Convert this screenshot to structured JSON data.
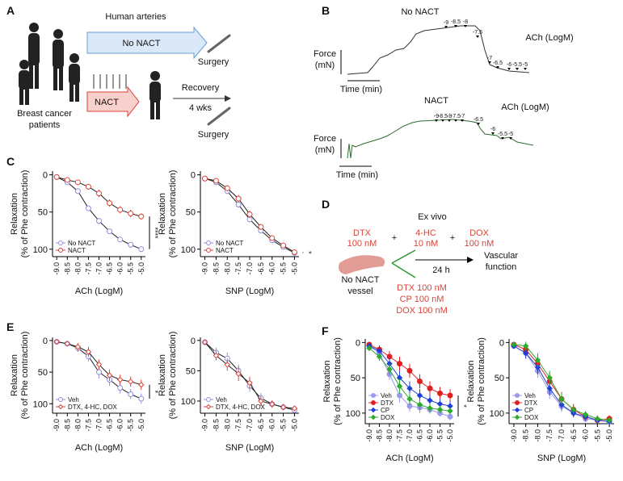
{
  "panels": [
    "A",
    "B",
    "C",
    "D",
    "E",
    "F"
  ],
  "panel_a": {
    "title": "Human arteries",
    "no_nact": "No NACT",
    "surgery_1": "Surgery",
    "nact": "NACT",
    "recovery": "Recovery",
    "duration": "4 wks",
    "surgery_2": "Surgery",
    "patients": [
      "Breast cancer",
      "patients"
    ]
  },
  "panel_b": {
    "traces": [
      {
        "title": "No NACT",
        "agonist": "ACh (LogM)",
        "doses": [
          "-9",
          "-8.5",
          "-8",
          "-7.5",
          "-7",
          "-6.5",
          "-6",
          "-5.5",
          "-5"
        ],
        "y_label": [
          "Force",
          "(mN)"
        ],
        "x_label": "Time (min)"
      },
      {
        "title": "NACT",
        "agonist": "ACh (LogM)",
        "doses": [
          "-9",
          "-8.5",
          "-8",
          "-7.5",
          "-7",
          "-6.5",
          "-6",
          "-5.5",
          "-5"
        ],
        "y_label": [
          "Force",
          "(mN)"
        ],
        "x_label": "Time (min)"
      }
    ]
  },
  "panel_d": {
    "title": "Ex vivo",
    "drugs": [
      {
        "name": "DTX",
        "dose": "100 nM"
      },
      {
        "name": "4-HC",
        "dose": "10 nM"
      },
      {
        "name": "DOX",
        "dose": "100 nM"
      }
    ],
    "plus": "+",
    "time": "24 h",
    "outcome": [
      "Vascular",
      "function"
    ],
    "vessel": [
      "No NACT",
      "vessel"
    ],
    "alt_drugs": [
      "DTX 100 nM",
      "CP 100 nM",
      "DOX 100 nM"
    ]
  },
  "chart_data": [
    {
      "type": "line",
      "x": [
        -9,
        -8.5,
        -8,
        -7.5,
        -7,
        -6.5,
        -6,
        -5.5,
        -5
      ],
      "xlim": [
        -9.2,
        -4.8
      ],
      "xticks": [
        {
          "value": -9,
          "label": "-9.0"
        },
        {
          "value": -8.5,
          "label": "-8.5"
        },
        {
          "value": -8,
          "label": "-8.0"
        },
        {
          "value": -7.5,
          "label": "-7.5"
        },
        {
          "value": -7,
          "label": "-7.0"
        },
        {
          "value": -6.5,
          "label": "-6.5"
        },
        {
          "value": -6,
          "label": "-6.0"
        },
        {
          "value": -5.5,
          "label": "-5.5"
        },
        {
          "value": -5,
          "label": "-5.0"
        }
      ],
      "ylim": [
        -5,
        110
      ],
      "yticks": [
        0,
        50,
        100
      ],
      "y_inverted": true,
      "xlabel": "ACh (LogM)",
      "ylabel": [
        "Relaxation",
        "(% of Phe contraction)"
      ],
      "legend": "lower left",
      "marker_fill": false,
      "annotation": "****",
      "series": [
        {
          "name": "No NACT",
          "color": "#8f8fe0",
          "marker": "circle",
          "values": [
            3,
            10,
            22,
            45,
            62,
            76,
            87,
            94,
            100
          ],
          "errors": [
            2,
            2,
            3,
            3,
            4,
            3,
            3,
            2,
            2
          ]
        },
        {
          "name": "NACT",
          "color": "#d9453a",
          "marker": "circle",
          "values": [
            3,
            7,
            10,
            16,
            25,
            38,
            47,
            52,
            56
          ],
          "errors": [
            2,
            2,
            3,
            4,
            5,
            5,
            5,
            5,
            4
          ]
        }
      ]
    },
    {
      "type": "line",
      "x": [
        -9,
        -8.5,
        -8,
        -7.5,
        -7,
        -6.5,
        -6,
        -5.5,
        -5
      ],
      "xlim": [
        -9.2,
        -4.8
      ],
      "xticks": [
        {
          "value": -9,
          "label": "-9.0"
        },
        {
          "value": -8.5,
          "label": "-8.5"
        },
        {
          "value": -8,
          "label": "-8.0"
        },
        {
          "value": -7.5,
          "label": "-7.5"
        },
        {
          "value": -7,
          "label": "-7.0"
        },
        {
          "value": -6.5,
          "label": "-6.5"
        },
        {
          "value": -6,
          "label": "-6.0"
        },
        {
          "value": -5.5,
          "label": "-5.5"
        },
        {
          "value": -5,
          "label": "-5.0"
        }
      ],
      "ylim": [
        -5,
        110
      ],
      "yticks": [
        0,
        50,
        100
      ],
      "y_inverted": true,
      "xlabel": "SNP (LogM)",
      "ylabel": [
        "Relaxation",
        "(% of Phe contraction)"
      ],
      "legend": "lower left",
      "marker_fill": false,
      "annotation": "*",
      "series": [
        {
          "name": "No NACT",
          "color": "#8f8fe0",
          "marker": "circle",
          "values": [
            5,
            10,
            22,
            40,
            60,
            75,
            88,
            97,
            105
          ],
          "errors": [
            2,
            3,
            3,
            4,
            4,
            3,
            3,
            2,
            2
          ]
        },
        {
          "name": "NACT",
          "color": "#d9453a",
          "marker": "circle",
          "values": [
            5,
            8,
            18,
            32,
            53,
            70,
            85,
            95,
            104
          ],
          "errors": [
            2,
            3,
            4,
            5,
            5,
            4,
            3,
            2,
            2
          ]
        }
      ]
    },
    {
      "type": "line",
      "x": [
        -9,
        -8.5,
        -8,
        -7.5,
        -7,
        -6.5,
        -6,
        -5.5,
        -5
      ],
      "xlim": [
        -9.2,
        -4.8
      ],
      "xticks": [
        {
          "value": -9,
          "label": "-9.0"
        },
        {
          "value": -8.5,
          "label": "-8.5"
        },
        {
          "value": -8,
          "label": "-8.0"
        },
        {
          "value": -7.5,
          "label": "-7.5"
        },
        {
          "value": -7,
          "label": "-7.0"
        },
        {
          "value": -6.5,
          "label": "-6.5"
        },
        {
          "value": -6,
          "label": "-6.0"
        },
        {
          "value": -5.5,
          "label": "-5.5"
        },
        {
          "value": -5,
          "label": "-5.0"
        }
      ],
      "ylim": [
        -5,
        115
      ],
      "yticks": [
        0,
        50,
        100
      ],
      "y_inverted": true,
      "xlabel": "ACh (LogM)",
      "ylabel": [
        "Relaxation",
        "(% of Phe contraction)"
      ],
      "legend": "lower left",
      "marker_fill": false,
      "annotation": "*",
      "series": [
        {
          "name": "Veh",
          "color": "#8f8fe0",
          "marker": "circle",
          "values": [
            2,
            5,
            12,
            25,
            50,
            62,
            75,
            85,
            92
          ],
          "errors": [
            2,
            4,
            6,
            8,
            10,
            10,
            9,
            8,
            8
          ]
        },
        {
          "name": "DTX, 4-HC, DOX",
          "color": "#d9453a",
          "marker": "diamond",
          "values": [
            2,
            5,
            10,
            18,
            38,
            55,
            62,
            65,
            70
          ],
          "errors": [
            2,
            4,
            6,
            8,
            8,
            9,
            8,
            8,
            8
          ]
        }
      ]
    },
    {
      "type": "line",
      "x": [
        -9,
        -8.5,
        -8,
        -7.5,
        -7,
        -6.5,
        -6,
        -5.5,
        -5
      ],
      "xlim": [
        -9.2,
        -4.8
      ],
      "xticks": [
        {
          "value": -9,
          "label": "-9.0"
        },
        {
          "value": -8.5,
          "label": "-8.5"
        },
        {
          "value": -8,
          "label": "-8.0"
        },
        {
          "value": -7.5,
          "label": "-7.5"
        },
        {
          "value": -7,
          "label": "-7.0"
        },
        {
          "value": -6.5,
          "label": "-6.5"
        },
        {
          "value": -6,
          "label": "-6.0"
        },
        {
          "value": -5.5,
          "label": "-5.5"
        },
        {
          "value": -5,
          "label": "-5.0"
        }
      ],
      "ylim": [
        -5,
        120
      ],
      "yticks": [
        0,
        50,
        100
      ],
      "y_inverted": true,
      "xlabel": "SNP (LogM)",
      "ylabel": [
        "Relaxation",
        "(% of Phe contraction)"
      ],
      "legend": "lower left",
      "marker_fill": false,
      "series": [
        {
          "name": "Veh",
          "color": "#8f8fe0",
          "marker": "circle",
          "values": [
            3,
            20,
            30,
            50,
            75,
            95,
            105,
            110,
            115
          ],
          "errors": [
            3,
            8,
            10,
            10,
            10,
            8,
            6,
            5,
            4
          ]
        },
        {
          "name": "DTX, 4-HC, DOX",
          "color": "#d9453a",
          "marker": "diamond",
          "values": [
            3,
            25,
            40,
            55,
            70,
            100,
            105,
            110,
            112
          ],
          "errors": [
            3,
            8,
            10,
            12,
            10,
            8,
            6,
            5,
            4
          ]
        }
      ]
    },
    {
      "type": "line",
      "x": [
        -9,
        -8.5,
        -8,
        -7.5,
        -7,
        -6.5,
        -6,
        -5.5,
        -5
      ],
      "xlim": [
        -9.2,
        -4.8
      ],
      "xticks": [
        {
          "value": -9,
          "label": "-9.0"
        },
        {
          "value": -8.5,
          "label": "-8.5"
        },
        {
          "value": -8,
          "label": "-8.0"
        },
        {
          "value": -7.5,
          "label": "-7.5"
        },
        {
          "value": -7,
          "label": "-7.0"
        },
        {
          "value": -6.5,
          "label": "-6.5"
        },
        {
          "value": -6,
          "label": "-6.0"
        },
        {
          "value": -5.5,
          "label": "-5.5"
        },
        {
          "value": -5,
          "label": "-5.0"
        }
      ],
      "ylim": [
        -5,
        115
      ],
      "yticks": [
        0,
        50,
        100
      ],
      "y_inverted": true,
      "xlabel": "ACh (LogM)",
      "ylabel": [
        "Relaxation",
        "(% of Phe contraction)"
      ],
      "legend": "lower left",
      "marker_fill": true,
      "annotation": "*",
      "series": [
        {
          "name": "Veh",
          "color": "#9a9aee",
          "marker": "circle",
          "values": [
            5,
            15,
            45,
            75,
            90,
            92,
            95,
            100,
            105
          ],
          "errors": [
            3,
            6,
            8,
            10,
            8,
            8,
            6,
            5,
            5
          ]
        },
        {
          "name": "DTX",
          "color": "#e02020",
          "marker": "circle",
          "values": [
            3,
            10,
            20,
            30,
            40,
            55,
            65,
            72,
            75
          ],
          "errors": [
            3,
            6,
            8,
            10,
            10,
            10,
            10,
            9,
            9
          ]
        },
        {
          "name": "CP",
          "color": "#1f3fd6",
          "marker": "diamond",
          "values": [
            5,
            12,
            30,
            50,
            65,
            75,
            82,
            87,
            90
          ],
          "errors": [
            3,
            6,
            8,
            10,
            10,
            9,
            8,
            7,
            7
          ]
        },
        {
          "name": "DOX",
          "color": "#2eaa2e",
          "marker": "diamond",
          "values": [
            8,
            20,
            38,
            62,
            80,
            88,
            93,
            95,
            97
          ],
          "errors": [
            3,
            6,
            8,
            10,
            8,
            7,
            6,
            5,
            5
          ]
        }
      ]
    },
    {
      "type": "line",
      "x": [
        -9,
        -8.5,
        -8,
        -7.5,
        -7,
        -6.5,
        -6,
        -5.5,
        -5
      ],
      "xlim": [
        -9.2,
        -4.8
      ],
      "xticks": [
        {
          "value": -9,
          "label": "-9.0"
        },
        {
          "value": -8.5,
          "label": "-8.5"
        },
        {
          "value": -8,
          "label": "-8.0"
        },
        {
          "value": -7.5,
          "label": "-7.5"
        },
        {
          "value": -7,
          "label": "-7.0"
        },
        {
          "value": -6.5,
          "label": "-6.5"
        },
        {
          "value": -6,
          "label": "-6.0"
        },
        {
          "value": -5.5,
          "label": "-5.5"
        },
        {
          "value": -5,
          "label": "-5.0"
        }
      ],
      "ylim": [
        -5,
        115
      ],
      "yticks": [
        0,
        50,
        100
      ],
      "y_inverted": true,
      "xlabel": "SNP (LogM)",
      "ylabel": [
        "Relaxation",
        "(% of Phe contraction)"
      ],
      "legend": "lower left",
      "marker_fill": true,
      "series": [
        {
          "name": "Veh",
          "color": "#9a9aee",
          "marker": "circle",
          "values": [
            5,
            15,
            40,
            70,
            90,
            100,
            108,
            110,
            112
          ],
          "errors": [
            3,
            8,
            10,
            10,
            8,
            6,
            5,
            5,
            4
          ]
        },
        {
          "name": "DTX",
          "color": "#e02020",
          "marker": "circle",
          "values": [
            3,
            10,
            30,
            55,
            80,
            95,
            105,
            110,
            108
          ],
          "errors": [
            3,
            8,
            10,
            12,
            10,
            8,
            6,
            5,
            5
          ]
        },
        {
          "name": "CP",
          "color": "#1f3fd6",
          "marker": "diamond",
          "values": [
            5,
            15,
            35,
            65,
            88,
            100,
            105,
            110,
            112
          ],
          "errors": [
            3,
            8,
            10,
            10,
            8,
            6,
            5,
            5,
            4
          ]
        },
        {
          "name": "DOX",
          "color": "#2eaa2e",
          "marker": "diamond",
          "values": [
            3,
            5,
            25,
            50,
            80,
            95,
            102,
            108,
            110
          ],
          "errors": [
            3,
            6,
            10,
            10,
            8,
            6,
            5,
            5,
            4
          ]
        }
      ]
    }
  ]
}
